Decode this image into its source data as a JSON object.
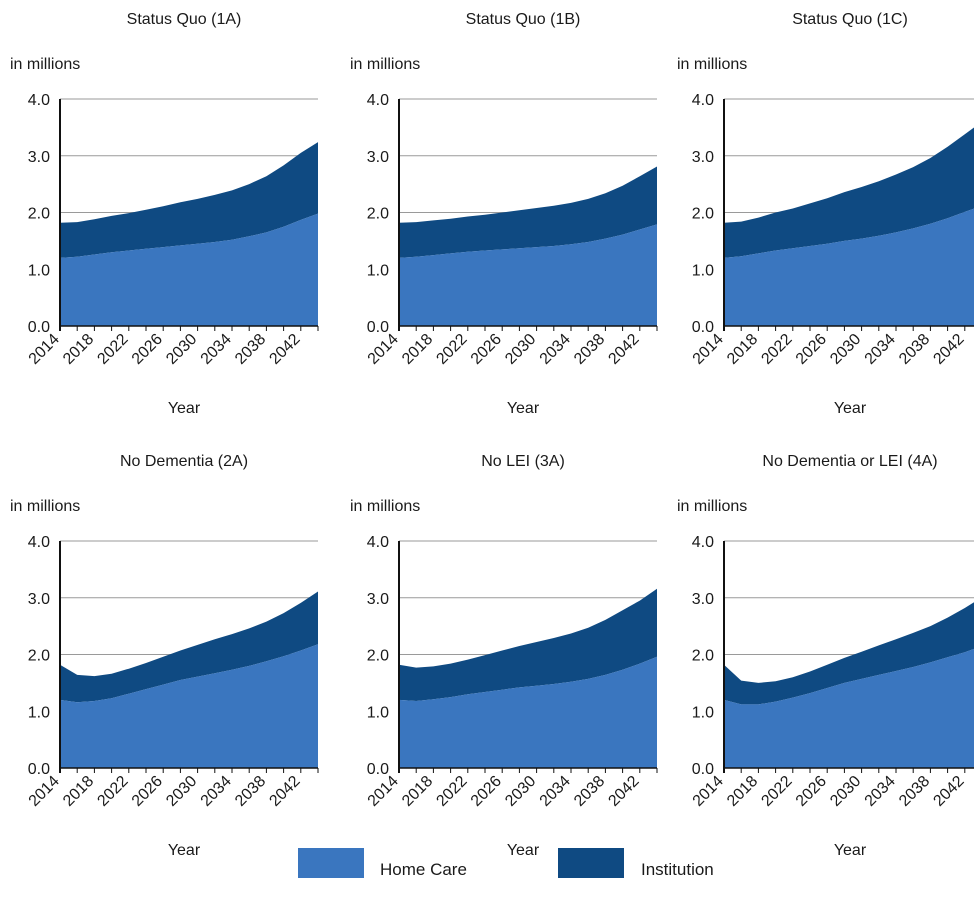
{
  "colors": {
    "home_care": "#3a76bf",
    "institution": "#0f4a82"
  },
  "legend": {
    "home_care": "Home Care",
    "institution": "Institution"
  },
  "chart_data": [
    {
      "type": "area",
      "title": "Status Quo (1A)",
      "ylabel": "in millions",
      "xlabel": "Year",
      "ylim": [
        0,
        4.0
      ],
      "yticks": [
        "0.0",
        "1.0",
        "2.0",
        "3.0",
        "4.0"
      ],
      "xticks": [
        "2014",
        "2018",
        "2022",
        "2026",
        "2030",
        "2034",
        "2038",
        "2042"
      ],
      "stacked": true,
      "x": [
        2014,
        2016,
        2018,
        2020,
        2022,
        2024,
        2026,
        2028,
        2030,
        2032,
        2034,
        2036,
        2038,
        2040,
        2042,
        2044
      ],
      "series": [
        {
          "name": "Home Care",
          "values": [
            1.2,
            1.22,
            1.26,
            1.3,
            1.33,
            1.36,
            1.39,
            1.42,
            1.45,
            1.48,
            1.52,
            1.58,
            1.65,
            1.75,
            1.87,
            1.98
          ]
        },
        {
          "name": "Institution",
          "values": [
            0.62,
            0.61,
            0.62,
            0.64,
            0.66,
            0.69,
            0.72,
            0.76,
            0.79,
            0.83,
            0.87,
            0.92,
            0.99,
            1.08,
            1.18,
            1.26
          ]
        }
      ]
    },
    {
      "type": "area",
      "title": "Status Quo (1B)",
      "ylabel": "in millions",
      "xlabel": "Year",
      "ylim": [
        0,
        4.0
      ],
      "yticks": [
        "0.0",
        "1.0",
        "2.0",
        "3.0",
        "4.0"
      ],
      "xticks": [
        "2014",
        "2018",
        "2022",
        "2026",
        "2030",
        "2034",
        "2038",
        "2042"
      ],
      "stacked": true,
      "x": [
        2014,
        2016,
        2018,
        2020,
        2022,
        2024,
        2026,
        2028,
        2030,
        2032,
        2034,
        2036,
        2038,
        2040,
        2042,
        2044
      ],
      "series": [
        {
          "name": "Home Care",
          "values": [
            1.2,
            1.22,
            1.25,
            1.28,
            1.31,
            1.33,
            1.35,
            1.37,
            1.39,
            1.41,
            1.44,
            1.48,
            1.54,
            1.61,
            1.7,
            1.79
          ]
        },
        {
          "name": "Institution",
          "values": [
            0.62,
            0.61,
            0.61,
            0.61,
            0.62,
            0.63,
            0.65,
            0.67,
            0.69,
            0.71,
            0.73,
            0.76,
            0.8,
            0.86,
            0.94,
            1.02
          ]
        }
      ]
    },
    {
      "type": "area",
      "title": "Status Quo (1C)",
      "ylabel": "in millions",
      "xlabel": "Year",
      "ylim": [
        0,
        4.0
      ],
      "yticks": [
        "0.0",
        "1.0",
        "2.0",
        "3.0",
        "4.0"
      ],
      "xticks": [
        "2014",
        "2018",
        "2022",
        "2026",
        "2030",
        "2034",
        "2038",
        "2042"
      ],
      "stacked": true,
      "x": [
        2014,
        2016,
        2018,
        2020,
        2022,
        2024,
        2026,
        2028,
        2030,
        2032,
        2034,
        2036,
        2038,
        2040,
        2042,
        2044
      ],
      "series": [
        {
          "name": "Home Care",
          "values": [
            1.2,
            1.23,
            1.28,
            1.33,
            1.37,
            1.41,
            1.45,
            1.5,
            1.54,
            1.59,
            1.65,
            1.72,
            1.8,
            1.9,
            2.01,
            2.12
          ]
        },
        {
          "name": "Institution",
          "values": [
            0.62,
            0.61,
            0.63,
            0.67,
            0.7,
            0.75,
            0.8,
            0.86,
            0.91,
            0.96,
            1.02,
            1.08,
            1.16,
            1.26,
            1.37,
            1.48
          ]
        }
      ]
    },
    {
      "type": "area",
      "title": "No Dementia (2A)",
      "ylabel": "in millions",
      "xlabel": "Year",
      "ylim": [
        0,
        4.0
      ],
      "yticks": [
        "0.0",
        "1.0",
        "2.0",
        "3.0",
        "4.0"
      ],
      "xticks": [
        "2014",
        "2018",
        "2022",
        "2026",
        "2030",
        "2034",
        "2038",
        "2042"
      ],
      "stacked": true,
      "x": [
        2014,
        2016,
        2018,
        2020,
        2022,
        2024,
        2026,
        2028,
        2030,
        2032,
        2034,
        2036,
        2038,
        2040,
        2042,
        2044
      ],
      "series": [
        {
          "name": "Home Care",
          "values": [
            1.2,
            1.16,
            1.18,
            1.23,
            1.31,
            1.39,
            1.47,
            1.55,
            1.61,
            1.67,
            1.73,
            1.8,
            1.88,
            1.97,
            2.07,
            2.18
          ]
        },
        {
          "name": "Institution",
          "values": [
            0.62,
            0.48,
            0.44,
            0.43,
            0.44,
            0.46,
            0.49,
            0.52,
            0.56,
            0.6,
            0.63,
            0.66,
            0.7,
            0.76,
            0.84,
            0.93
          ]
        }
      ]
    },
    {
      "type": "area",
      "title": "No LEI (3A)",
      "ylabel": "in millions",
      "xlabel": "Year",
      "ylim": [
        0,
        4.0
      ],
      "yticks": [
        "0.0",
        "1.0",
        "2.0",
        "3.0",
        "4.0"
      ],
      "xticks": [
        "2014",
        "2018",
        "2022",
        "2026",
        "2030",
        "2034",
        "2038",
        "2042"
      ],
      "stacked": true,
      "x": [
        2014,
        2016,
        2018,
        2020,
        2022,
        2024,
        2026,
        2028,
        2030,
        2032,
        2034,
        2036,
        2038,
        2040,
        2042,
        2044
      ],
      "series": [
        {
          "name": "Home Care",
          "values": [
            1.2,
            1.18,
            1.21,
            1.25,
            1.3,
            1.34,
            1.38,
            1.42,
            1.45,
            1.48,
            1.52,
            1.57,
            1.64,
            1.73,
            1.84,
            1.96
          ]
        },
        {
          "name": "Institution",
          "values": [
            0.62,
            0.59,
            0.58,
            0.59,
            0.61,
            0.65,
            0.69,
            0.73,
            0.77,
            0.81,
            0.85,
            0.9,
            0.97,
            1.05,
            1.11,
            1.2
          ]
        }
      ]
    },
    {
      "type": "area",
      "title": "No Dementia or LEI (4A)",
      "ylabel": "in millions",
      "xlabel": "Year",
      "ylim": [
        0,
        4.0
      ],
      "yticks": [
        "0.0",
        "1.0",
        "2.0",
        "3.0",
        "4.0"
      ],
      "xticks": [
        "2014",
        "2018",
        "2022",
        "2026",
        "2030",
        "2034",
        "2038",
        "2042"
      ],
      "stacked": true,
      "x": [
        2014,
        2016,
        2018,
        2020,
        2022,
        2024,
        2026,
        2028,
        2030,
        2032,
        2034,
        2036,
        2038,
        2040,
        2042,
        2044
      ],
      "series": [
        {
          "name": "Home Care",
          "values": [
            1.2,
            1.12,
            1.12,
            1.17,
            1.24,
            1.32,
            1.41,
            1.5,
            1.57,
            1.64,
            1.71,
            1.78,
            1.86,
            1.95,
            2.04,
            2.15
          ]
        },
        {
          "name": "Institution",
          "values": [
            0.62,
            0.42,
            0.38,
            0.36,
            0.36,
            0.38,
            0.41,
            0.44,
            0.48,
            0.52,
            0.56,
            0.6,
            0.64,
            0.7,
            0.78,
            0.86
          ]
        }
      ]
    }
  ]
}
